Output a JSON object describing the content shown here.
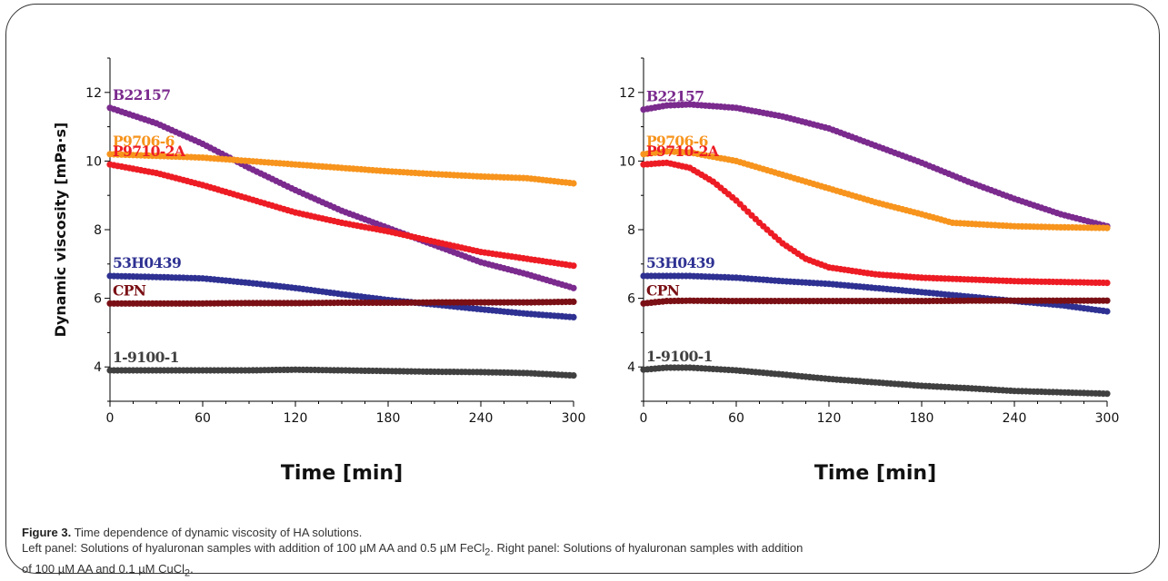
{
  "caption": {
    "figure_label": "Figure 3.",
    "title_text": "Time dependence of dynamic viscosity of HA solutions.",
    "line1_prefix": "Left panel: Solutions of hyaluronan samples with addition of 100 µM AA and 0.5 µM FeCl",
    "line1_sub": "2",
    "line1_mid": ". Right panel: Solutions of hyaluronan samples with addition",
    "line2_prefix": "of 100 µM AA and 0.1 µM CuCl",
    "line2_sub": "2",
    "line2_suffix": "."
  },
  "chart_data": [
    {
      "type": "scatter",
      "panel": "left",
      "xlabel": "Time [min]",
      "ylabel": "Dynamic viscosity [mPa·s]",
      "xlim": [
        0,
        300
      ],
      "ylim": [
        3,
        13
      ],
      "xticks": [
        "0",
        "60",
        "120",
        "180",
        "240",
        "300"
      ],
      "yticks": [
        "4",
        "6",
        "8",
        "10",
        "12"
      ],
      "series": [
        {
          "name": "B22157",
          "color": "#7b2a8e",
          "x": [
            0,
            30,
            60,
            90,
            120,
            150,
            180,
            210,
            240,
            270,
            300
          ],
          "y": [
            11.55,
            11.1,
            10.5,
            9.8,
            9.15,
            8.55,
            8.05,
            7.55,
            7.05,
            6.7,
            6.3
          ]
        },
        {
          "name": "P9706-6",
          "color": "#f7941d",
          "x": [
            0,
            30,
            60,
            90,
            120,
            150,
            180,
            210,
            240,
            270,
            300
          ],
          "y": [
            10.2,
            10.15,
            10.1,
            10.0,
            9.9,
            9.8,
            9.7,
            9.62,
            9.55,
            9.5,
            9.35
          ]
        },
        {
          "name": "P9710-2A",
          "color": "#ed1c24",
          "x": [
            0,
            30,
            60,
            90,
            120,
            150,
            180,
            210,
            240,
            270,
            300
          ],
          "y": [
            9.9,
            9.65,
            9.3,
            8.9,
            8.5,
            8.2,
            7.95,
            7.65,
            7.35,
            7.15,
            6.95
          ]
        },
        {
          "name": "53H0439",
          "color": "#2e3192",
          "x": [
            0,
            30,
            60,
            90,
            120,
            150,
            180,
            210,
            240,
            270,
            300
          ],
          "y": [
            6.65,
            6.62,
            6.58,
            6.45,
            6.3,
            6.12,
            5.95,
            5.82,
            5.68,
            5.55,
            5.45
          ]
        },
        {
          "name": "CPN",
          "color": "#7a1015",
          "x": [
            0,
            30,
            60,
            90,
            120,
            150,
            180,
            210,
            240,
            270,
            300
          ],
          "y": [
            5.85,
            5.85,
            5.85,
            5.86,
            5.86,
            5.87,
            5.87,
            5.88,
            5.88,
            5.88,
            5.9
          ]
        },
        {
          "name": "1-9100-1",
          "color": "#404040",
          "x": [
            0,
            30,
            60,
            90,
            120,
            150,
            180,
            210,
            240,
            270,
            300
          ],
          "y": [
            3.9,
            3.9,
            3.9,
            3.9,
            3.92,
            3.9,
            3.88,
            3.86,
            3.85,
            3.82,
            3.75
          ]
        }
      ],
      "grid": false,
      "legend": "inline labels at left of series"
    },
    {
      "type": "scatter",
      "panel": "right",
      "xlabel": "Time [min]",
      "ylabel": "",
      "xlim": [
        0,
        300
      ],
      "ylim": [
        3,
        13
      ],
      "xticks": [
        "0",
        "60",
        "120",
        "180",
        "240",
        "300"
      ],
      "yticks": [
        "4",
        "6",
        "8",
        "10",
        "12"
      ],
      "series": [
        {
          "name": "B22157",
          "color": "#7b2a8e",
          "x": [
            0,
            15,
            30,
            60,
            90,
            120,
            150,
            180,
            210,
            240,
            270,
            300
          ],
          "y": [
            11.5,
            11.62,
            11.65,
            11.55,
            11.3,
            10.95,
            10.45,
            9.95,
            9.4,
            8.9,
            8.45,
            8.1
          ]
        },
        {
          "name": "P9706-6",
          "color": "#f7941d",
          "x": [
            0,
            15,
            30,
            60,
            90,
            120,
            150,
            180,
            200,
            240,
            270,
            300
          ],
          "y": [
            10.2,
            10.28,
            10.25,
            10.0,
            9.6,
            9.2,
            8.8,
            8.45,
            8.2,
            8.1,
            8.07,
            8.05
          ]
        },
        {
          "name": "P9710-2A",
          "color": "#ed1c24",
          "x": [
            0,
            15,
            30,
            45,
            60,
            75,
            90,
            105,
            120,
            150,
            180,
            240,
            300
          ],
          "y": [
            9.9,
            9.95,
            9.8,
            9.4,
            8.85,
            8.2,
            7.6,
            7.15,
            6.9,
            6.7,
            6.6,
            6.5,
            6.45
          ]
        },
        {
          "name": "53H0439",
          "color": "#2e3192",
          "x": [
            0,
            30,
            60,
            90,
            120,
            150,
            180,
            210,
            240,
            270,
            300
          ],
          "y": [
            6.65,
            6.65,
            6.6,
            6.5,
            6.42,
            6.3,
            6.18,
            6.05,
            5.92,
            5.8,
            5.62
          ]
        },
        {
          "name": "CPN",
          "color": "#7a1015",
          "x": [
            0,
            15,
            30,
            60,
            90,
            120,
            150,
            180,
            210,
            240,
            270,
            300
          ],
          "y": [
            5.85,
            5.92,
            5.93,
            5.92,
            5.92,
            5.92,
            5.92,
            5.92,
            5.93,
            5.93,
            5.93,
            5.93
          ]
        },
        {
          "name": "1-9100-1",
          "color": "#404040",
          "x": [
            0,
            15,
            30,
            60,
            90,
            120,
            150,
            180,
            210,
            240,
            270,
            300
          ],
          "y": [
            3.92,
            3.98,
            3.98,
            3.9,
            3.78,
            3.65,
            3.55,
            3.45,
            3.38,
            3.3,
            3.26,
            3.22
          ]
        }
      ],
      "grid": false,
      "legend": "inline labels at left of series"
    }
  ]
}
